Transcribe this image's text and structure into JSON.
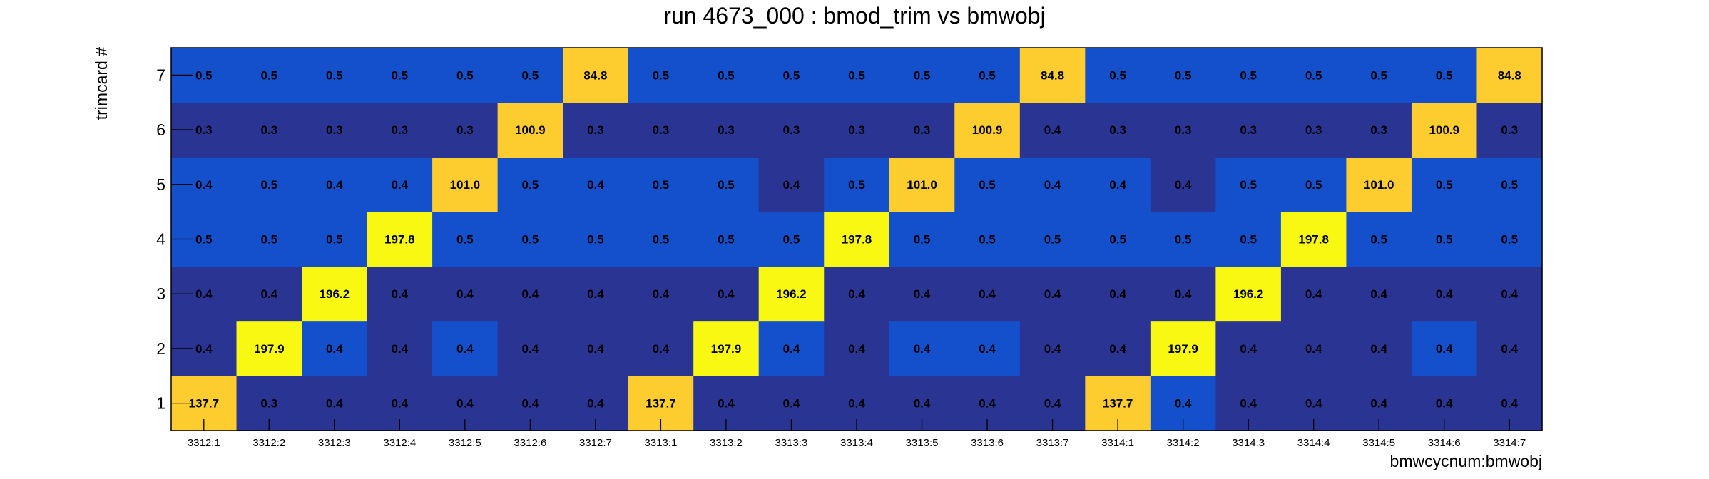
{
  "chart_data": {
    "type": "heatmap",
    "title": "run 4673_000 : bmod_trim vs bmwobj",
    "xlabel": "bmwcycnum:bmwobj",
    "ylabel": "trimcard #",
    "x_categories": [
      "3312:1",
      "3312:2",
      "3312:3",
      "3312:4",
      "3312:5",
      "3312:6",
      "3312:7",
      "3313:1",
      "3313:2",
      "3313:3",
      "3313:4",
      "3313:5",
      "3313:6",
      "3313:7",
      "3314:1",
      "3314:2",
      "3314:3",
      "3314:4",
      "3314:5",
      "3314:6",
      "3314:7"
    ],
    "y_categories": [
      "1",
      "2",
      "3",
      "4",
      "5",
      "6",
      "7"
    ],
    "z_rows": [
      [
        "137.7",
        "0.3",
        "0.4",
        "0.4",
        "0.4",
        "0.4",
        "0.4",
        "137.7",
        "0.4",
        "0.4",
        "0.4",
        "0.4",
        "0.4",
        "0.4",
        "137.7",
        "0.4",
        "0.4",
        "0.4",
        "0.4",
        "0.4",
        "0.4"
      ],
      [
        "0.4",
        "197.9",
        "0.4",
        "0.4",
        "0.4",
        "0.4",
        "0.4",
        "0.4",
        "197.9",
        "0.4",
        "0.4",
        "0.4",
        "0.4",
        "0.4",
        "0.4",
        "197.9",
        "0.4",
        "0.4",
        "0.4",
        "0.4",
        "0.4"
      ],
      [
        "0.4",
        "0.4",
        "196.2",
        "0.4",
        "0.4",
        "0.4",
        "0.4",
        "0.4",
        "0.4",
        "196.2",
        "0.4",
        "0.4",
        "0.4",
        "0.4",
        "0.4",
        "0.4",
        "196.2",
        "0.4",
        "0.4",
        "0.4",
        "0.4"
      ],
      [
        "0.5",
        "0.5",
        "0.5",
        "197.8",
        "0.5",
        "0.5",
        "0.5",
        "0.5",
        "0.5",
        "0.5",
        "197.8",
        "0.5",
        "0.5",
        "0.5",
        "0.5",
        "0.5",
        "0.5",
        "197.8",
        "0.5",
        "0.5",
        "0.5"
      ],
      [
        "0.4",
        "0.5",
        "0.4",
        "0.4",
        "101.0",
        "0.5",
        "0.4",
        "0.5",
        "0.5",
        "0.4",
        "0.5",
        "101.0",
        "0.5",
        "0.4",
        "0.4",
        "0.4",
        "0.5",
        "0.5",
        "101.0",
        "0.5",
        "0.5"
      ],
      [
        "0.3",
        "0.3",
        "0.3",
        "0.3",
        "0.3",
        "100.9",
        "0.3",
        "0.3",
        "0.3",
        "0.3",
        "0.3",
        "0.3",
        "100.9",
        "0.4",
        "0.3",
        "0.3",
        "0.3",
        "0.3",
        "0.3",
        "100.9",
        "0.3"
      ],
      [
        "0.5",
        "0.5",
        "0.5",
        "0.5",
        "0.5",
        "0.5",
        "84.8",
        "0.5",
        "0.5",
        "0.5",
        "0.5",
        "0.5",
        "0.5",
        "84.8",
        "0.5",
        "0.5",
        "0.5",
        "0.5",
        "0.5",
        "0.5",
        "84.8"
      ]
    ],
    "colors": {
      "dark_blue": "#2a3593",
      "mid_blue": "#1450cc",
      "gold": "#fdcc2f",
      "yellow": "#f8f812"
    },
    "cell_colors": [
      [
        "gold",
        "dark_blue",
        "dark_blue",
        "dark_blue",
        "dark_blue",
        "dark_blue",
        "dark_blue",
        "gold",
        "dark_blue",
        "dark_blue",
        "dark_blue",
        "dark_blue",
        "dark_blue",
        "dark_blue",
        "gold",
        "mid_blue",
        "dark_blue",
        "dark_blue",
        "dark_blue",
        "dark_blue",
        "dark_blue"
      ],
      [
        "dark_blue",
        "yellow",
        "mid_blue",
        "dark_blue",
        "mid_blue",
        "dark_blue",
        "dark_blue",
        "dark_blue",
        "yellow",
        "mid_blue",
        "dark_blue",
        "mid_blue",
        "mid_blue",
        "dark_blue",
        "dark_blue",
        "yellow",
        "dark_blue",
        "dark_blue",
        "dark_blue",
        "mid_blue",
        "dark_blue"
      ],
      [
        "dark_blue",
        "dark_blue",
        "yellow",
        "dark_blue",
        "dark_blue",
        "dark_blue",
        "dark_blue",
        "dark_blue",
        "dark_blue",
        "yellow",
        "dark_blue",
        "dark_blue",
        "dark_blue",
        "dark_blue",
        "dark_blue",
        "dark_blue",
        "yellow",
        "dark_blue",
        "dark_blue",
        "dark_blue",
        "dark_blue"
      ],
      [
        "mid_blue",
        "mid_blue",
        "mid_blue",
        "yellow",
        "mid_blue",
        "mid_blue",
        "mid_blue",
        "mid_blue",
        "mid_blue",
        "mid_blue",
        "yellow",
        "mid_blue",
        "mid_blue",
        "mid_blue",
        "mid_blue",
        "mid_blue",
        "mid_blue",
        "yellow",
        "mid_blue",
        "mid_blue",
        "mid_blue"
      ],
      [
        "mid_blue",
        "mid_blue",
        "mid_blue",
        "mid_blue",
        "gold",
        "mid_blue",
        "mid_blue",
        "mid_blue",
        "mid_blue",
        "dark_blue",
        "mid_blue",
        "gold",
        "mid_blue",
        "mid_blue",
        "mid_blue",
        "dark_blue",
        "mid_blue",
        "mid_blue",
        "gold",
        "mid_blue",
        "mid_blue"
      ],
      [
        "dark_blue",
        "dark_blue",
        "dark_blue",
        "dark_blue",
        "dark_blue",
        "gold",
        "dark_blue",
        "dark_blue",
        "dark_blue",
        "dark_blue",
        "dark_blue",
        "dark_blue",
        "gold",
        "dark_blue",
        "dark_blue",
        "dark_blue",
        "dark_blue",
        "dark_blue",
        "dark_blue",
        "gold",
        "dark_blue"
      ],
      [
        "mid_blue",
        "mid_blue",
        "mid_blue",
        "mid_blue",
        "mid_blue",
        "mid_blue",
        "gold",
        "mid_blue",
        "mid_blue",
        "mid_blue",
        "mid_blue",
        "mid_blue",
        "mid_blue",
        "gold",
        "mid_blue",
        "mid_blue",
        "mid_blue",
        "mid_blue",
        "mid_blue",
        "mid_blue",
        "gold"
      ]
    ]
  }
}
